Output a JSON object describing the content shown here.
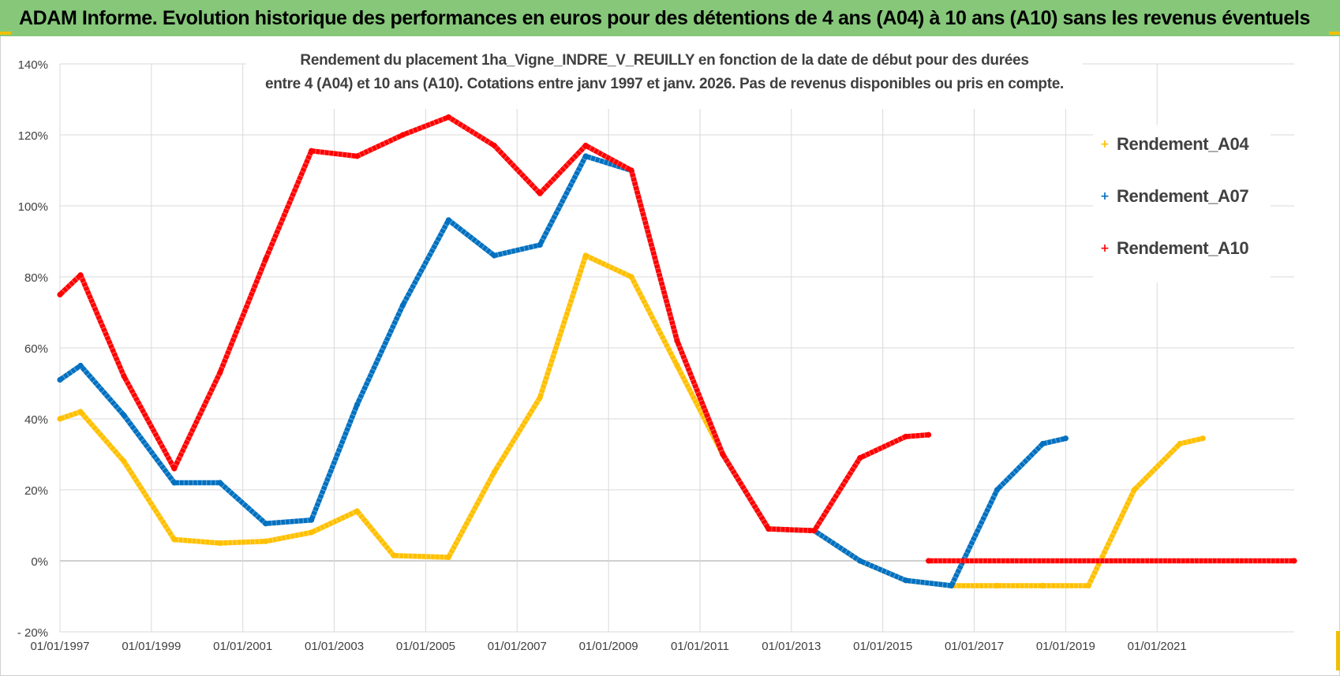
{
  "header": {
    "banner_title": "ADAM Informe. Evolution historique des performances en euros pour des détentions de 4 ans (A04) à 10 ans (A10) sans les revenus éventuels"
  },
  "colors": {
    "banner_bg": "#86c77a",
    "A04": "#FFC000",
    "A07": "#0070C0",
    "A10": "#FF0000",
    "grid": "#d9d9d9",
    "zero_line": "#bfbfbf",
    "axis_text": "#404040"
  },
  "chart_data": {
    "type": "line",
    "title_line1": "Rendement du placement 1ha_Vigne_INDRE_V_REUILLY en fonction de la date de début pour des durées",
    "title_line2": "entre 4 (A04) et 10 ans (A10).  Cotations entre janv 1997 et janv. 2026. Pas de revenus disponibles ou pris en compte.",
    "xlabel": "",
    "ylabel": "",
    "x_range": [
      1997.0,
      2024.0
    ],
    "ylim": [
      -20,
      140
    ],
    "y_ticks": [
      -20,
      0,
      20,
      40,
      60,
      80,
      100,
      120,
      140
    ],
    "y_tick_labels": [
      "- 20%",
      "0%",
      "20%",
      "40%",
      "60%",
      "80%",
      "100%",
      "120%",
      "140%"
    ],
    "x_ticks": [
      1997,
      1999,
      2001,
      2003,
      2005,
      2007,
      2009,
      2011,
      2013,
      2015,
      2017,
      2019,
      2021
    ],
    "x_tick_labels": [
      "01/01/1997",
      "01/01/1999",
      "01/01/2001",
      "01/01/2003",
      "01/01/2005",
      "01/01/2007",
      "01/01/2009",
      "01/01/2011",
      "01/01/2013",
      "01/01/2015",
      "01/01/2017",
      "01/01/2019",
      "01/01/2021"
    ],
    "grid": true,
    "legend_position": "top-right",
    "series": [
      {
        "name": "Rendement_A04",
        "key": "A04",
        "points": [
          [
            1997.0,
            40
          ],
          [
            1997.45,
            42
          ],
          [
            1998.4,
            28
          ],
          [
            1999.5,
            6
          ],
          [
            2000.5,
            5
          ],
          [
            2001.5,
            5.5
          ],
          [
            2002.5,
            8
          ],
          [
            2003.5,
            14
          ],
          [
            2004.3,
            1.5
          ],
          [
            2005.5,
            1
          ],
          [
            2006.5,
            25
          ],
          [
            2007.5,
            46
          ],
          [
            2008.5,
            86
          ],
          [
            2009.5,
            80
          ],
          [
            2010.5,
            55
          ],
          [
            2011.5,
            30
          ],
          [
            2012.5,
            9
          ],
          [
            2013.5,
            8.5
          ],
          [
            2014.5,
            0
          ],
          [
            2015.5,
            -5.5
          ],
          [
            2016.5,
            -7
          ],
          [
            2017.5,
            -7
          ],
          [
            2018.5,
            -7
          ],
          [
            2019.5,
            -7
          ],
          [
            2020.5,
            20
          ],
          [
            2021.5,
            33
          ],
          [
            2022.0,
            34.5
          ]
        ]
      },
      {
        "name": "Rendement_A07",
        "key": "A07",
        "points": [
          [
            1997.0,
            51
          ],
          [
            1997.45,
            55
          ],
          [
            1998.4,
            41
          ],
          [
            1999.5,
            22
          ],
          [
            2000.5,
            22
          ],
          [
            2001.5,
            10.5
          ],
          [
            2002.5,
            11.5
          ],
          [
            2003.5,
            44
          ],
          [
            2004.5,
            72
          ],
          [
            2005.5,
            96
          ],
          [
            2006.5,
            86
          ],
          [
            2007.5,
            89
          ],
          [
            2008.5,
            114
          ],
          [
            2009.5,
            110
          ],
          [
            2010.5,
            62
          ],
          [
            2011.5,
            30
          ],
          [
            2012.5,
            9
          ],
          [
            2013.5,
            8.5
          ],
          [
            2014.5,
            0
          ],
          [
            2015.5,
            -5.5
          ],
          [
            2016.5,
            -7
          ],
          [
            2017.5,
            20
          ],
          [
            2018.5,
            33
          ],
          [
            2019.0,
            34.5
          ]
        ]
      },
      {
        "name": "Rendement_A10",
        "key": "A10",
        "points": [
          [
            1997.0,
            75
          ],
          [
            1997.45,
            80.5
          ],
          [
            1998.4,
            52
          ],
          [
            1999.5,
            26
          ],
          [
            2000.5,
            53
          ],
          [
            2001.5,
            85
          ],
          [
            2002.5,
            115.5
          ],
          [
            2003.5,
            114
          ],
          [
            2004.5,
            120
          ],
          [
            2005.5,
            125
          ],
          [
            2006.5,
            117
          ],
          [
            2007.5,
            103.5
          ],
          [
            2008.5,
            117
          ],
          [
            2009.5,
            110
          ],
          [
            2010.5,
            62
          ],
          [
            2011.5,
            30
          ],
          [
            2012.5,
            9
          ],
          [
            2013.5,
            8.5
          ],
          [
            2014.5,
            29
          ],
          [
            2015.5,
            35
          ],
          [
            2016.0,
            35.5
          ]
        ]
      },
      {
        "name": "Rendement_A10 (zéro)",
        "key": "A10",
        "points": [
          [
            2016.0,
            0
          ],
          [
            2024.0,
            0
          ]
        ]
      }
    ]
  },
  "legend": {
    "items": [
      {
        "label": "Rendement_A04",
        "marker": "+"
      },
      {
        "label": "Rendement_A07",
        "marker": "+"
      },
      {
        "label": "Rendement_A10",
        "marker": "+"
      }
    ]
  }
}
